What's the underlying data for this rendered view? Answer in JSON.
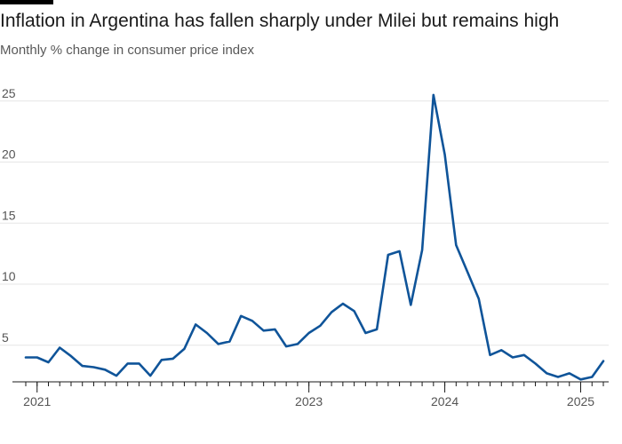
{
  "title": "Inflation in Argentina has fallen sharply under Milei but remains high",
  "subtitle": "Monthly % change in consumer price index",
  "colors": {
    "line": "#0f5499",
    "grid": "#e6e6e6",
    "axis": "#1a1a1a",
    "tick_text": "#555555",
    "background": "#ffffff"
  },
  "chart_data": {
    "type": "line",
    "title": "Inflation in Argentina has fallen sharply under Milei but remains high",
    "subtitle": "Monthly % change in consumer price index",
    "xlabel": "",
    "ylabel": "",
    "ylim": [
      2,
      26
    ],
    "y_ticks": [
      5,
      10,
      15,
      20,
      25
    ],
    "y_tick_labels": [
      "5",
      "10",
      "15",
      "20",
      "25"
    ],
    "x_ticks": [
      "2021-01",
      "2023-01",
      "2024-01",
      "2025-01"
    ],
    "x_tick_labels": [
      "2021",
      "2023",
      "2024",
      "2025"
    ],
    "grid": true,
    "series": [
      {
        "x": [
          "2020-12",
          "2021-01",
          "2021-02",
          "2021-03",
          "2021-04",
          "2021-05",
          "2021-06",
          "2021-07",
          "2021-08",
          "2021-09",
          "2021-10",
          "2021-11",
          "2021-12",
          "2022-01",
          "2022-02",
          "2022-03",
          "2022-04",
          "2022-05",
          "2022-06",
          "2022-07",
          "2022-08",
          "2022-09",
          "2022-10",
          "2022-11",
          "2022-12",
          "2023-01",
          "2023-02",
          "2023-03",
          "2023-04",
          "2023-05",
          "2023-06",
          "2023-07",
          "2023-08",
          "2023-09",
          "2023-10",
          "2023-11",
          "2023-12",
          "2024-01",
          "2024-02",
          "2024-03",
          "2024-04",
          "2024-05",
          "2024-06",
          "2024-07",
          "2024-08",
          "2024-09",
          "2024-10",
          "2024-11",
          "2024-12",
          "2025-01",
          "2025-02",
          "2025-03"
        ],
        "values": [
          4.0,
          4.0,
          3.6,
          4.8,
          4.1,
          3.3,
          3.2,
          3.0,
          2.5,
          3.5,
          3.5,
          2.5,
          3.8,
          3.9,
          4.7,
          6.7,
          6.0,
          5.1,
          5.3,
          7.4,
          7.0,
          6.2,
          6.3,
          4.9,
          5.1,
          6.0,
          6.6,
          7.7,
          8.4,
          7.8,
          6.0,
          6.3,
          12.4,
          12.7,
          8.3,
          12.8,
          25.5,
          20.6,
          13.2,
          11.0,
          8.8,
          4.2,
          4.6,
          4.0,
          4.2,
          3.5,
          2.7,
          2.4,
          2.7,
          2.2,
          2.4,
          3.7
        ]
      }
    ]
  }
}
